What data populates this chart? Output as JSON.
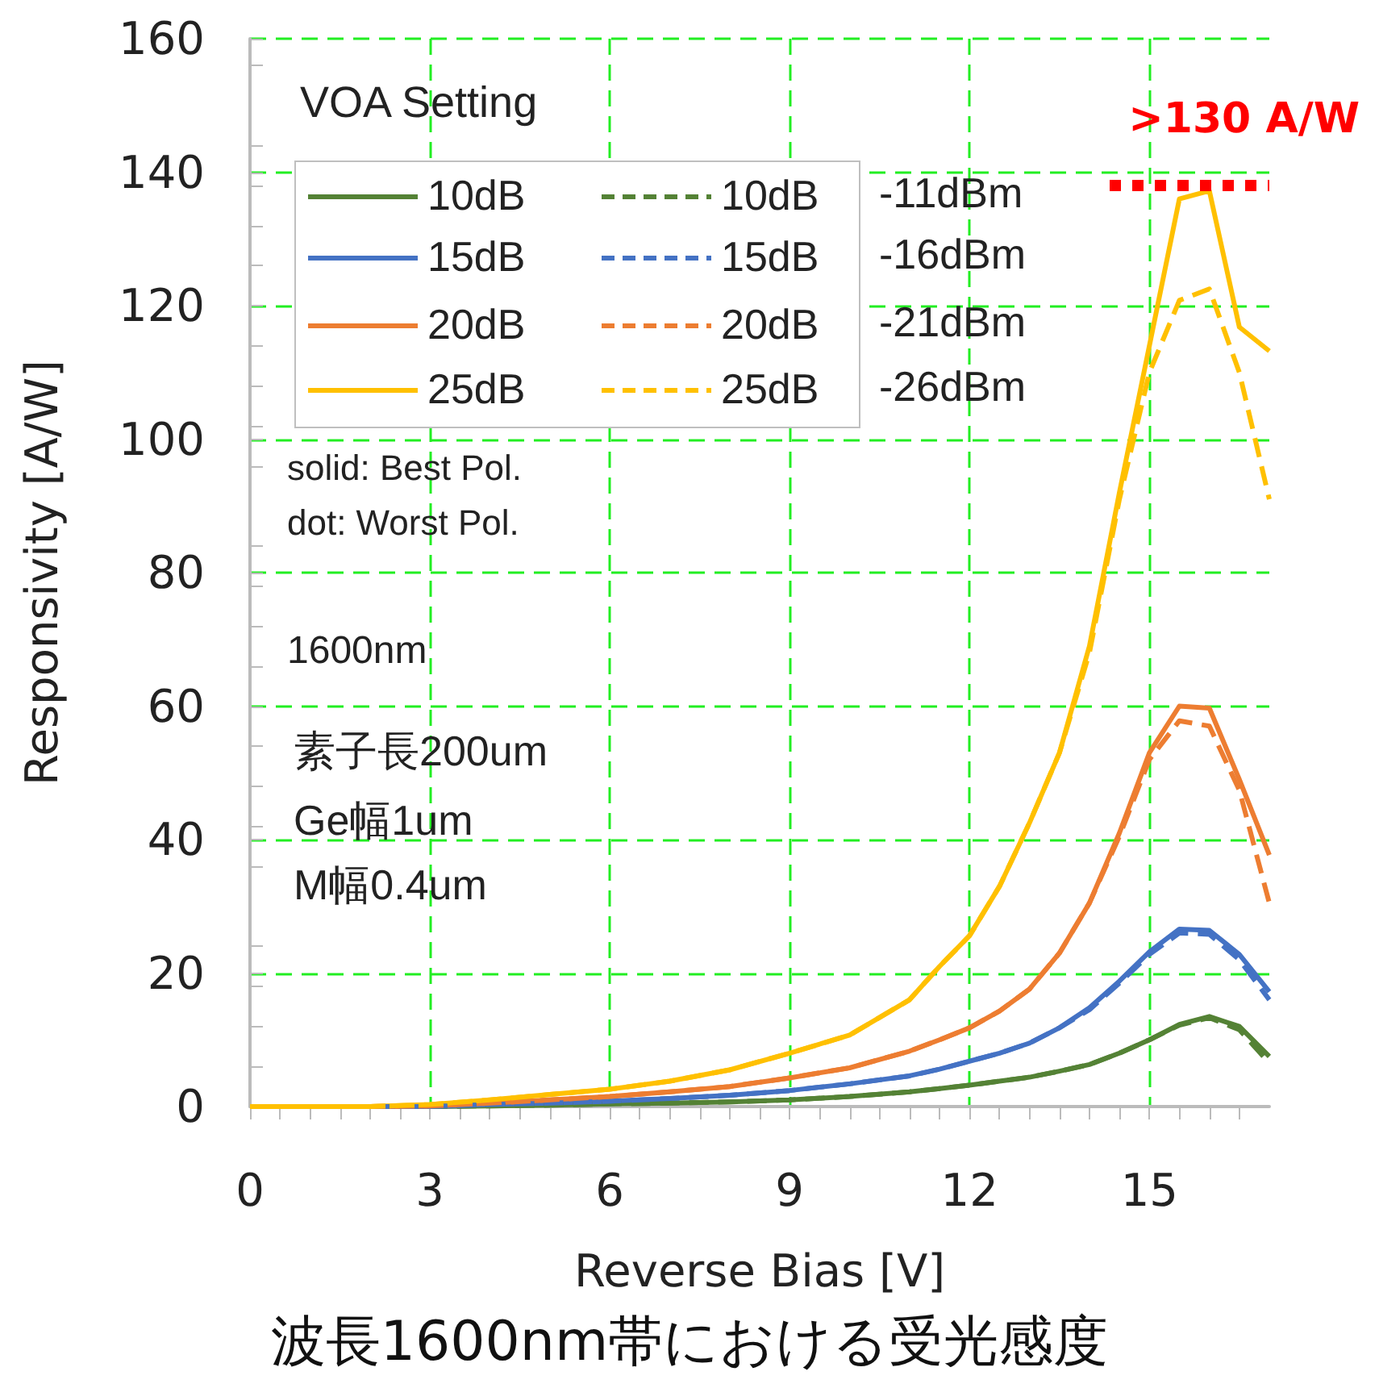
{
  "chart_data": {
    "type": "line",
    "title": "波長1600nm帯における受光感度",
    "xlabel": "Reverse Bias [V]",
    "ylabel": "Responsivity [A/W]",
    "x": [
      0,
      1,
      2,
      3,
      4,
      5,
      6,
      7,
      8,
      9,
      10,
      11,
      11.5,
      12,
      12.5,
      13,
      13.5,
      14,
      14.5,
      15,
      15.5,
      16,
      16.5,
      17
    ],
    "xlim": [
      0,
      17
    ],
    "xticks": [
      0,
      3,
      6,
      9,
      12,
      15
    ],
    "ylim": [
      0,
      160
    ],
    "yticks": [
      0,
      20,
      40,
      60,
      80,
      100,
      120,
      140,
      160
    ],
    "grid": true,
    "legend": "top left",
    "marker": "none",
    "series": [
      {
        "name": "10dB",
        "color": "#548235",
        "line_style": "solid",
        "values": [
          null,
          null,
          0,
          0,
          0.1,
          0.2,
          0.4,
          0.5,
          0.7,
          1,
          1.5,
          2.2,
          2.7,
          3.2,
          3.8,
          4.4,
          5.3,
          6.3,
          8,
          10,
          12.3,
          13.5,
          12,
          7.5
        ]
      },
      {
        "name": "15dB",
        "color": "#4472c4",
        "line_style": "solid",
        "values": [
          null,
          null,
          0,
          0,
          0.3,
          0.5,
          0.8,
          1.2,
          1.7,
          2.4,
          3.4,
          4.6,
          5.6,
          6.8,
          8,
          9.5,
          11.8,
          14.8,
          18.8,
          23.2,
          26.6,
          26.4,
          22.8,
          17.2
        ]
      },
      {
        "name": "20dB",
        "color": "#ed7d31",
        "line_style": "solid",
        "values": [
          0,
          0,
          0,
          0.1,
          0.5,
          1,
          1.5,
          2.2,
          3,
          4.3,
          5.8,
          8.3,
          10,
          11.8,
          14.3,
          17.6,
          23,
          30.5,
          41,
          53,
          60,
          59.7,
          49,
          37.7
        ]
      },
      {
        "name": "25dB",
        "color": "#ffc000",
        "line_style": "solid",
        "values": [
          0,
          0,
          0,
          0.3,
          1,
          1.8,
          2.6,
          3.8,
          5.5,
          8,
          10.7,
          16,
          21,
          25.6,
          33,
          42.5,
          53,
          69,
          92,
          114,
          136,
          137.2,
          116.8,
          113.2
        ]
      },
      {
        "name": "10dB",
        "color": "#548235",
        "line_style": "dashed",
        "values": [
          null,
          null,
          0,
          0,
          0.1,
          0.2,
          0.4,
          0.5,
          0.7,
          1,
          1.5,
          2.2,
          2.7,
          3.2,
          3.8,
          4.4,
          5.3,
          6.3,
          8,
          10,
          12.2,
          13.3,
          11.5,
          6.5
        ]
      },
      {
        "name": "15dB",
        "color": "#4472c4",
        "line_style": "dashed",
        "values": [
          null,
          null,
          0,
          0,
          0.3,
          0.5,
          0.8,
          1.2,
          1.7,
          2.4,
          3.4,
          4.6,
          5.6,
          6.8,
          8,
          9.5,
          11.8,
          14.5,
          18.5,
          22.8,
          26,
          25.8,
          22,
          16
        ]
      },
      {
        "name": "20dB",
        "color": "#ed7d31",
        "line_style": "dashed",
        "values": [
          0,
          0,
          0,
          0.1,
          0.5,
          1,
          1.5,
          2.2,
          3,
          4.3,
          5.8,
          8.3,
          10,
          11.8,
          14.3,
          17.6,
          23,
          30.5,
          40.5,
          52,
          57.8,
          57,
          47.4,
          30.5
        ]
      },
      {
        "name": "25dB",
        "color": "#ffc000",
        "line_style": "dashed",
        "values": [
          0,
          0,
          0,
          0.3,
          1,
          1.8,
          2.6,
          3.8,
          5.5,
          8,
          10.7,
          16,
          21,
          25.6,
          33,
          42.5,
          53,
          68,
          91,
          110,
          120.8,
          122.5,
          110,
          91
        ]
      }
    ],
    "ref_lines": [
      {
        "axis": "y",
        "value": 138,
        "label": ">130 A/W",
        "color": "#ff0000",
        "line_style": "dotted"
      }
    ],
    "annotations": [
      "VOA Setting",
      "-11dBm",
      "-16dBm",
      "-21dBm",
      "-26dBm",
      "solid: Best Pol.",
      "dot: Worst Pol.",
      "1600nm",
      "素子長200um",
      "Ge幅1um",
      "M幅0.4um"
    ]
  }
}
